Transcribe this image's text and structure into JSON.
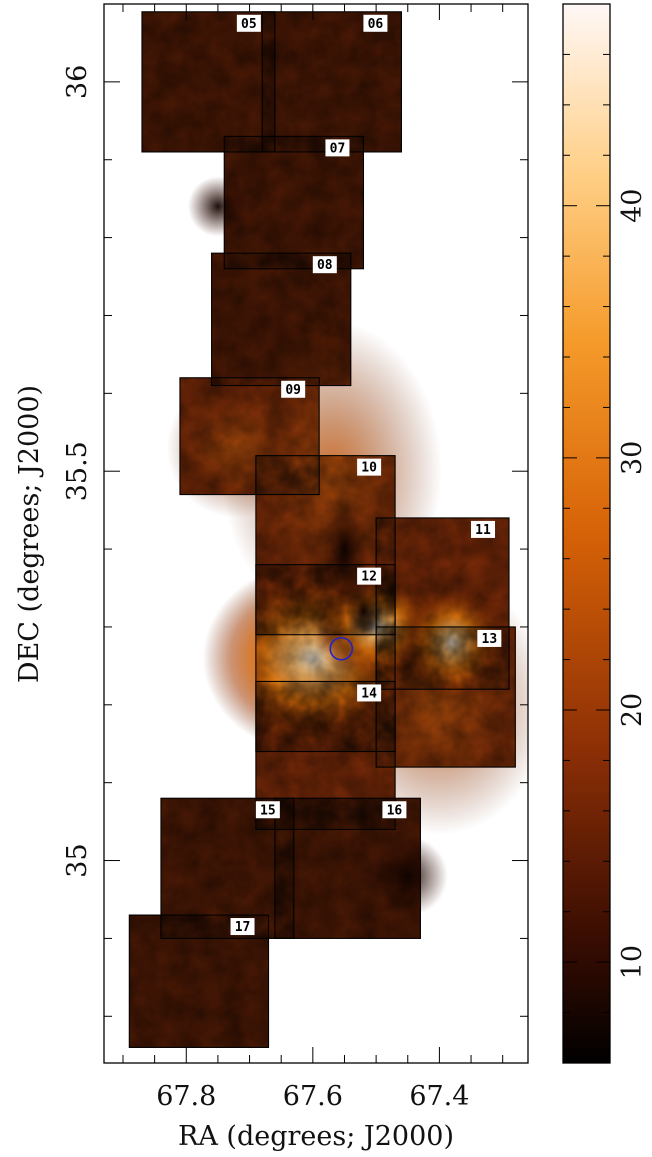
{
  "chart_data": {
    "type": "heatmap",
    "xlabel": "RA (degrees; J2000)",
    "ylabel": "DEC (degrees; J2000)",
    "xlim": [
      67.93,
      67.26
    ],
    "ylim": [
      34.74,
      36.1
    ],
    "x_ticks": [
      {
        "value": 67.8,
        "label": "67.8"
      },
      {
        "value": 67.6,
        "label": "67.6"
      },
      {
        "value": 67.4,
        "label": "67.4"
      }
    ],
    "y_ticks": [
      {
        "value": 35.0,
        "label": "35"
      },
      {
        "value": 35.5,
        "label": "35.5"
      },
      {
        "value": 36.0,
        "label": "36"
      }
    ],
    "colorbar": {
      "range": [
        6,
        48
      ],
      "colors": [
        "#000000",
        "#7a2000",
        "#f07000",
        "#ffb050",
        "#ffffff"
      ],
      "ticks": [
        {
          "value": 10,
          "label": "10"
        },
        {
          "value": 20,
          "label": "20"
        },
        {
          "value": 30,
          "label": "30"
        },
        {
          "value": 40,
          "label": "40"
        }
      ]
    },
    "tiles": [
      {
        "id": "05",
        "ra": [
          67.87,
          67.66
        ],
        "dec": [
          35.91,
          36.09
        ]
      },
      {
        "id": "06",
        "ra": [
          67.68,
          67.46
        ],
        "dec": [
          35.91,
          36.09
        ]
      },
      {
        "id": "07",
        "ra": [
          67.74,
          67.52
        ],
        "dec": [
          35.76,
          35.93
        ]
      },
      {
        "id": "08",
        "ra": [
          67.76,
          67.54
        ],
        "dec": [
          35.61,
          35.78
        ]
      },
      {
        "id": "09",
        "ra": [
          67.81,
          67.59
        ],
        "dec": [
          35.47,
          35.62
        ]
      },
      {
        "id": "10",
        "ra": [
          67.69,
          67.47
        ],
        "dec": [
          35.29,
          35.52
        ]
      },
      {
        "id": "11",
        "ra": [
          67.5,
          67.29
        ],
        "dec": [
          35.22,
          35.44
        ]
      },
      {
        "id": "12",
        "ra": [
          67.69,
          67.47
        ],
        "dec": [
          35.14,
          35.38
        ]
      },
      {
        "id": "13",
        "ra": [
          67.5,
          67.28
        ],
        "dec": [
          35.12,
          35.3
        ]
      },
      {
        "id": "14",
        "ra": [
          67.69,
          67.47
        ],
        "dec": [
          35.04,
          35.23
        ]
      },
      {
        "id": "15",
        "ra": [
          67.84,
          67.63
        ],
        "dec": [
          34.9,
          35.08
        ]
      },
      {
        "id": "16",
        "ra": [
          67.66,
          67.43
        ],
        "dec": [
          34.9,
          35.08
        ]
      },
      {
        "id": "17",
        "ra": [
          67.89,
          67.67
        ],
        "dec": [
          34.76,
          34.93
        ]
      }
    ],
    "marker": {
      "shape": "circle",
      "color": "#2222cc",
      "ra": 67.555,
      "dec": 35.272
    }
  }
}
